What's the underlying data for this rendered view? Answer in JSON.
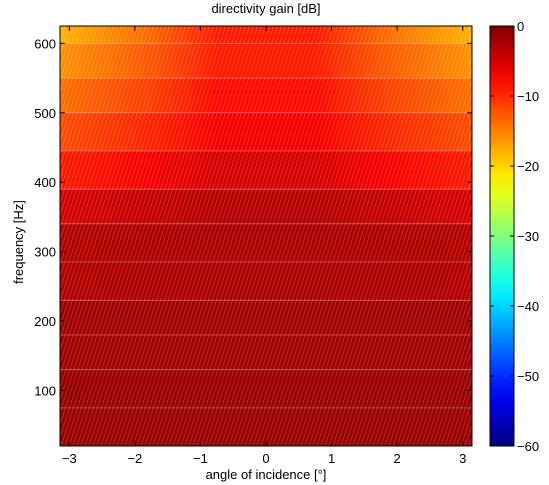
{
  "chart_data": {
    "type": "heatmap",
    "title": "directivity gain [dB]",
    "xlabel": "angle of incidence [°]",
    "ylabel": "frequency [Hz]",
    "xlim": [
      -3.1416,
      3.1416
    ],
    "ylim": [
      20,
      625
    ],
    "xticks": [
      -3,
      -2,
      -1,
      0,
      1,
      2,
      3
    ],
    "xtick_labels": [
      "−3",
      "−2",
      "−1",
      "0",
      "1",
      "2",
      "3"
    ],
    "yticks": [
      100,
      200,
      300,
      400,
      500,
      600
    ],
    "ytick_labels": [
      "100",
      "200",
      "300",
      "400",
      "500",
      "600"
    ],
    "colorbar": {
      "colormap": "jet",
      "range": [
        -60,
        0
      ],
      "ticks": [
        0,
        -10,
        -20,
        -30,
        -40,
        -50,
        -60
      ],
      "tick_labels": [
        "0",
        "−10",
        "−20",
        "−30",
        "−40",
        "−50",
        "−60"
      ]
    },
    "frequency_bands": [
      20,
      75,
      130,
      180,
      230,
      285,
      340,
      390,
      445,
      500,
      550,
      600,
      625
    ],
    "gain_profile": [
      {
        "frequency_band": [
          20,
          130
        ],
        "gain_center_db": -1.5,
        "gain_edge_db": -1.5
      },
      {
        "frequency_band": [
          130,
          230
        ],
        "gain_center_db": -2,
        "gain_edge_db": -2
      },
      {
        "frequency_band": [
          230,
          340
        ],
        "gain_center_db": -2.5,
        "gain_edge_db": -3
      },
      {
        "frequency_band": [
          340,
          390
        ],
        "gain_center_db": -3,
        "gain_edge_db": -5
      },
      {
        "frequency_band": [
          390,
          445
        ],
        "gain_center_db": -5,
        "gain_edge_db": -9
      },
      {
        "frequency_band": [
          445,
          500
        ],
        "gain_center_db": -7,
        "gain_edge_db": -12
      },
      {
        "frequency_band": [
          500,
          550
        ],
        "gain_center_db": -8,
        "gain_edge_db": -14
      },
      {
        "frequency_band": [
          550,
          600
        ],
        "gain_center_db": -9,
        "gain_edge_db": -16
      },
      {
        "frequency_band": [
          600,
          625
        ],
        "gain_center_db": -9,
        "gain_edge_db": -18
      }
    ],
    "grid": false
  },
  "colors": {
    "background": "#ffffff",
    "axis": "#000000"
  }
}
